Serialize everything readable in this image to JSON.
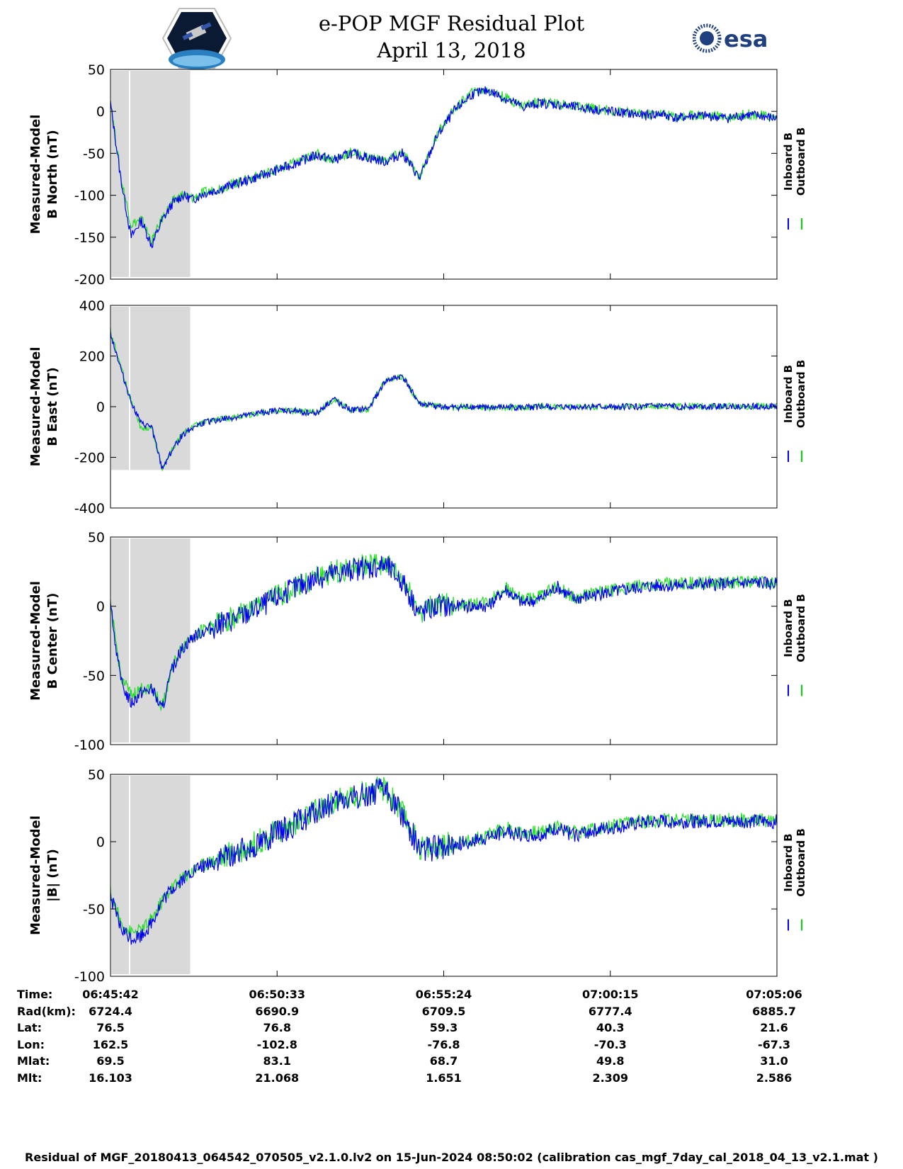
{
  "header": {
    "title_line1": "e-POP MGF Residual Plot",
    "title_line2": "April 13, 2018",
    "logo_left": "cassiope-mission-logo",
    "logo_right_text": "esa"
  },
  "colors": {
    "inboard": "#0000ee",
    "outboard": "#00dd00",
    "shade": "#d9d9d9",
    "axis": "#000000"
  },
  "chart_data": [
    {
      "type": "line",
      "ylabel_line1": "Measured-Model",
      "ylabel_line2": "B North (nT)",
      "ylim": [
        -200,
        50
      ],
      "yticks": [
        -200,
        -150,
        -100,
        -50,
        0,
        50
      ],
      "legend": [
        "Inboard B",
        "Outboard B"
      ],
      "legend_placement": "right",
      "shaded_time_range": [
        "06:45:42",
        "06:48:00"
      ],
      "x_minutes": [
        0,
        0.3,
        0.6,
        0.9,
        1.2,
        1.5,
        1.8,
        2.1,
        2.4,
        2.7,
        3.0,
        3.5,
        4.0,
        4.5,
        5.0,
        5.5,
        6.0,
        6.5,
        7.0,
        7.5,
        8.0,
        8.5,
        9.0,
        9.5,
        10.0,
        10.5,
        11.0,
        11.5,
        12.0,
        12.5,
        13.0,
        13.5,
        14.0,
        14.5,
        15.0,
        15.5,
        16.0,
        16.5,
        17.0,
        17.5,
        18.0,
        18.5,
        19.0,
        19.24
      ],
      "series": [
        {
          "name": "Inboard B",
          "values": [
            10,
            -80,
            -150,
            -130,
            -160,
            -130,
            -110,
            -100,
            -105,
            -98,
            -95,
            -88,
            -82,
            -75,
            -68,
            -60,
            -52,
            -58,
            -50,
            -55,
            -60,
            -50,
            -80,
            -30,
            0,
            20,
            25,
            15,
            5,
            10,
            8,
            5,
            3,
            0,
            -2,
            -5,
            -3,
            -8,
            -5,
            -6,
            -8,
            -4,
            -6,
            -8
          ]
        },
        {
          "name": "Outboard B",
          "values": [
            12,
            -78,
            -135,
            -128,
            -155,
            -128,
            -108,
            -99,
            -104,
            -97,
            -94,
            -87,
            -81,
            -74,
            -67,
            -59,
            -51,
            -57,
            -49,
            -54,
            -59,
            -49,
            -78,
            -28,
            2,
            22,
            26,
            16,
            7,
            12,
            9,
            6,
            4,
            1,
            -1,
            -4,
            -2,
            -7,
            -4,
            -5,
            -7,
            -3,
            -5,
            -7
          ]
        }
      ]
    },
    {
      "type": "line",
      "ylabel_line1": "Measured-Model",
      "ylabel_line2": "B East (nT)",
      "ylim": [
        -400,
        400
      ],
      "yticks": [
        -400,
        -200,
        0,
        200,
        400
      ],
      "legend": [
        "Inboard B",
        "Outboard B"
      ],
      "legend_placement": "right",
      "shaded_time_range": [
        "06:45:42",
        "06:48:00"
      ],
      "x_minutes": [
        0,
        0.3,
        0.6,
        0.9,
        1.2,
        1.5,
        1.8,
        2.1,
        2.4,
        2.7,
        3.0,
        3.5,
        4.0,
        4.5,
        5.0,
        5.5,
        6.0,
        6.5,
        7.0,
        7.5,
        8.0,
        8.5,
        9.0,
        9.5,
        10.0,
        10.5,
        11.0,
        11.5,
        12.0,
        12.5,
        13.0,
        13.5,
        14.0,
        14.5,
        15.0,
        15.5,
        16.0,
        16.5,
        17.0,
        17.5,
        18.0,
        18.5,
        19.0,
        19.24
      ],
      "series": [
        {
          "name": "Inboard B",
          "values": [
            290,
            150,
            20,
            -70,
            -80,
            -245,
            -170,
            -110,
            -80,
            -65,
            -55,
            -45,
            -35,
            -20,
            -15,
            -20,
            -25,
            30,
            -15,
            -10,
            100,
            120,
            10,
            0,
            -5,
            0,
            -5,
            -3,
            -5,
            0,
            -3,
            -2,
            0,
            -3,
            0,
            0,
            2,
            0,
            2,
            0,
            2,
            0,
            2,
            0
          ]
        },
        {
          "name": "Outboard B",
          "values": [
            300,
            160,
            25,
            -90,
            -78,
            -243,
            -168,
            -108,
            -79,
            -64,
            -54,
            -44,
            -34,
            -19,
            -14,
            -19,
            -24,
            31,
            -14,
            -9,
            101,
            121,
            11,
            1,
            -4,
            1,
            -4,
            -2,
            -4,
            1,
            -2,
            -1,
            1,
            -2,
            1,
            1,
            3,
            1,
            3,
            1,
            3,
            1,
            3,
            1
          ]
        }
      ]
    },
    {
      "type": "line",
      "ylabel_line1": "Measured-Model",
      "ylabel_line2": "B Center (nT)",
      "ylim": [
        -100,
        50
      ],
      "yticks": [
        -100,
        -50,
        0,
        50
      ],
      "legend": [
        "Inboard B",
        "Outboard B"
      ],
      "legend_placement": "right",
      "shaded_time_range": [
        "06:45:42",
        "06:48:00"
      ],
      "x_minutes": [
        0,
        0.3,
        0.6,
        0.9,
        1.2,
        1.5,
        1.8,
        2.1,
        2.4,
        2.7,
        3.0,
        3.5,
        4.0,
        4.5,
        5.0,
        5.5,
        6.0,
        6.5,
        7.0,
        7.5,
        8.0,
        8.5,
        9.0,
        9.5,
        10.0,
        10.5,
        11.0,
        11.5,
        12.0,
        12.5,
        13.0,
        13.5,
        14.0,
        14.5,
        15.0,
        15.5,
        16.0,
        16.5,
        17.0,
        17.5,
        18.0,
        18.5,
        19.0,
        19.24
      ],
      "series": [
        {
          "name": "Inboard B",
          "values": [
            0,
            -55,
            -70,
            -62,
            -60,
            -75,
            -45,
            -30,
            -22,
            -18,
            -15,
            -10,
            -5,
            2,
            8,
            15,
            20,
            24,
            26,
            28,
            30,
            18,
            -5,
            0,
            0,
            0,
            0,
            12,
            2,
            5,
            14,
            5,
            8,
            10,
            12,
            14,
            15,
            15,
            16,
            16,
            16,
            17,
            17,
            16
          ]
        },
        {
          "name": "Outboard B",
          "values": [
            0,
            -50,
            -65,
            -60,
            -58,
            -73,
            -44,
            -29,
            -21,
            -17,
            -14,
            -9,
            -4,
            3,
            9,
            16,
            21,
            25,
            27,
            29,
            31,
            19,
            -4,
            1,
            1,
            1,
            3,
            14,
            4,
            7,
            15,
            6,
            9,
            11,
            13,
            15,
            16,
            16,
            17,
            17,
            17,
            18,
            18,
            17
          ]
        }
      ]
    },
    {
      "type": "line",
      "ylabel_line1": "Measured-Model",
      "ylabel_line2": "|B| (nT)",
      "ylim": [
        -100,
        50
      ],
      "yticks": [
        -100,
        -50,
        0,
        50
      ],
      "legend": [
        "Inboard B",
        "Outboard B"
      ],
      "legend_placement": "right",
      "shaded_time_range": [
        "06:45:42",
        "06:48:00"
      ],
      "x_minutes": [
        0,
        0.3,
        0.6,
        0.9,
        1.2,
        1.5,
        1.8,
        2.1,
        2.4,
        2.7,
        3.0,
        3.5,
        4.0,
        4.5,
        5.0,
        5.5,
        6.0,
        6.5,
        7.0,
        7.5,
        8.0,
        8.5,
        9.0,
        9.5,
        10.0,
        10.5,
        11.0,
        11.5,
        12.0,
        12.5,
        13.0,
        13.5,
        14.0,
        14.5,
        15.0,
        15.5,
        16.0,
        16.5,
        17.0,
        17.5,
        18.0,
        18.5,
        19.0,
        19.24
      ],
      "series": [
        {
          "name": "Inboard B",
          "values": [
            -40,
            -65,
            -72,
            -70,
            -60,
            -45,
            -35,
            -28,
            -22,
            -18,
            -15,
            -10,
            -5,
            2,
            8,
            15,
            22,
            28,
            32,
            36,
            38,
            20,
            -5,
            -5,
            -2,
            0,
            3,
            8,
            5,
            5,
            10,
            5,
            8,
            10,
            12,
            14,
            15,
            15,
            15,
            15,
            15,
            15,
            15,
            15
          ]
        },
        {
          "name": "Outboard B",
          "values": [
            -38,
            -60,
            -68,
            -66,
            -58,
            -44,
            -34,
            -27,
            -21,
            -17,
            -14,
            -9,
            -4,
            3,
            9,
            16,
            23,
            29,
            33,
            37,
            39,
            21,
            -4,
            -4,
            -1,
            1,
            5,
            10,
            7,
            7,
            12,
            7,
            9,
            11,
            13,
            15,
            16,
            16,
            16,
            16,
            16,
            16,
            16,
            16
          ]
        }
      ]
    }
  ],
  "x_axis": {
    "ticks_minutes": [
      0,
      4.85,
      9.7,
      14.55,
      19.4
    ],
    "xlim_minutes": [
      0,
      19.4
    ]
  },
  "footer": {
    "rows": [
      {
        "label": "Time:",
        "values": [
          "06:45:42",
          "06:50:33",
          "06:55:24",
          "07:00:15",
          "07:05:06"
        ]
      },
      {
        "label": "Rad(km):",
        "values": [
          "6724.4",
          "6690.9",
          "6709.5",
          "6777.4",
          "6885.7"
        ]
      },
      {
        "label": "Lat:",
        "values": [
          "76.5",
          "76.8",
          "59.3",
          "40.3",
          "21.6"
        ]
      },
      {
        "label": "Lon:",
        "values": [
          "162.5",
          "-102.8",
          "-76.8",
          "-70.3",
          "-67.3"
        ]
      },
      {
        "label": "Mlat:",
        "values": [
          "69.5",
          "83.1",
          "68.7",
          "49.8",
          "31.0"
        ]
      },
      {
        "label": "Mlt:",
        "values": [
          "16.103",
          "21.068",
          "1.651",
          "2.309",
          "2.586"
        ]
      }
    ],
    "caption": "Residual of MGF_20180413_064542_070505_v2.1.0.lv2 on 15-Jun-2024 08:50:02 (calibration cas_mgf_7day_cal_2018_04_13_v2.1.mat )"
  }
}
